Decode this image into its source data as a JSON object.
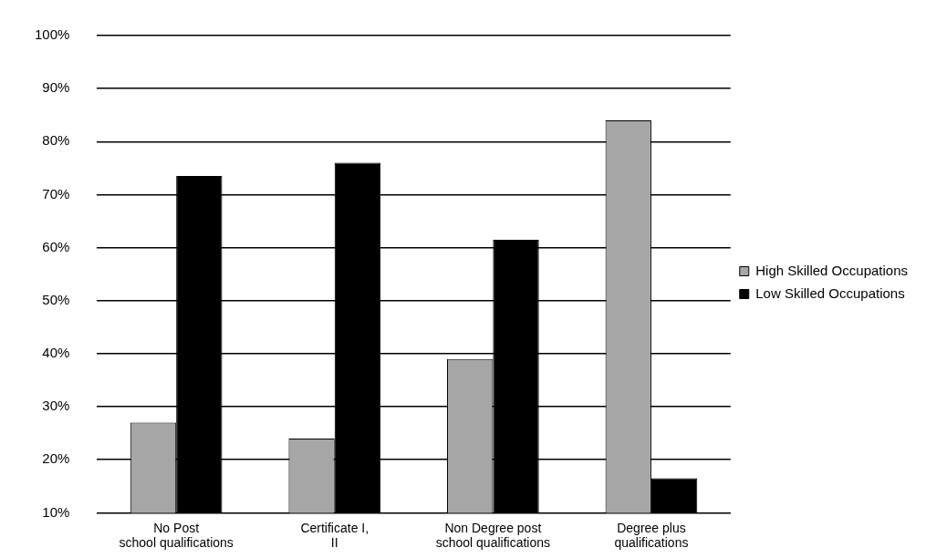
{
  "chart_data": {
    "type": "bar",
    "categories": [
      "No Post school qualifications",
      "Certificate I, II",
      "Non Degree post school qualifications",
      "Degree plus qualifications"
    ],
    "series": [
      {
        "name": "High Skilled Occupations",
        "color": "#a6a6a6",
        "values": [
          27,
          24,
          39,
          84
        ]
      },
      {
        "name": "Low Skilled Occupations",
        "color": "#000000",
        "values": [
          73.5,
          76,
          61.5,
          16.5
        ]
      }
    ],
    "ylim": [
      10,
      100
    ],
    "yticks": [
      {
        "value": 10,
        "label": "10%"
      },
      {
        "value": 20,
        "label": "20%"
      },
      {
        "value": 30,
        "label": "30%"
      },
      {
        "value": 40,
        "label": "40%"
      },
      {
        "value": 50,
        "label": "50%"
      },
      {
        "value": 60,
        "label": "60%"
      },
      {
        "value": 70,
        "label": "70%"
      },
      {
        "value": 80,
        "label": "80%"
      },
      {
        "value": 90,
        "label": "90%"
      },
      {
        "value": 100,
        "label": "100%"
      }
    ],
    "grid": "y",
    "legend": "right"
  }
}
